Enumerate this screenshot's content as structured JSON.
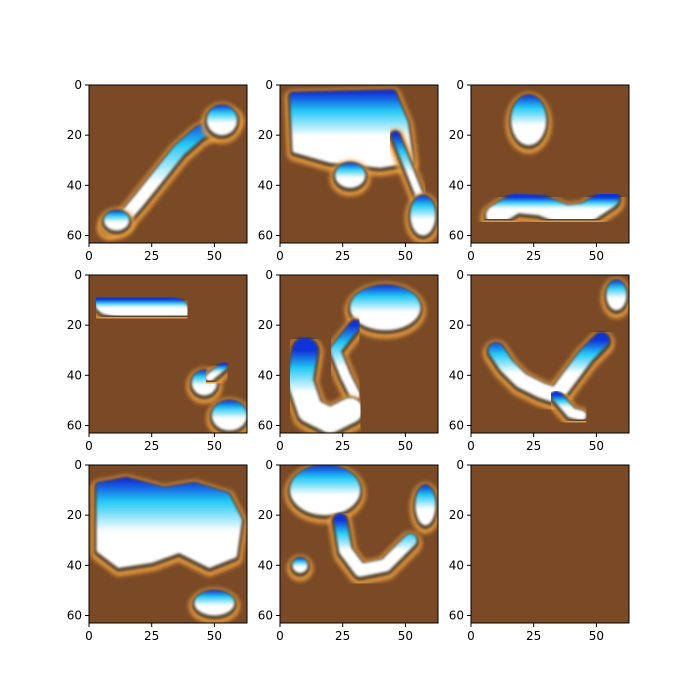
{
  "figure": {
    "background": "#ffffff",
    "panel_background": "#7a4a26",
    "palette": {
      "brown": "#7a4a26",
      "highlight_white": "#ffffff",
      "cyan": "#22c8f4",
      "blue": "#1030d8",
      "orange_rim": "#f0a040",
      "dark_rim": "#2a2a2a"
    }
  },
  "chart_data": [
    {
      "type": "image",
      "panel": "row1-col1",
      "xlim": [
        0,
        63
      ],
      "ylim": [
        63,
        0
      ],
      "xticks": [
        0,
        25,
        50
      ],
      "yticks": [
        0,
        20,
        40,
        60
      ],
      "blobs": [
        {
          "kind": "stroke",
          "points": [
            [
              8,
              56
            ],
            [
              14,
              53
            ],
            [
              20,
              46
            ],
            [
              28,
              36
            ],
            [
              36,
              26
            ],
            [
              44,
              19
            ],
            [
              52,
              15
            ],
            [
              57,
              13
            ]
          ],
          "thickness": 5
        },
        {
          "kind": "ellipse",
          "cx": 53,
          "cy": 14,
          "rx": 6,
          "ry": 6
        },
        {
          "kind": "ellipse",
          "cx": 11,
          "cy": 54,
          "rx": 5,
          "ry": 4
        }
      ]
    },
    {
      "type": "image",
      "panel": "row1-col2",
      "xlim": [
        0,
        63
      ],
      "ylim": [
        63,
        0
      ],
      "xticks": [
        0,
        25,
        50
      ],
      "yticks": [
        0,
        20,
        40,
        60
      ],
      "blobs": [
        {
          "kind": "polygon",
          "points": [
            [
              5,
              4
            ],
            [
              45,
              3
            ],
            [
              50,
              15
            ],
            [
              52,
              30
            ],
            [
              40,
              32
            ],
            [
              20,
              30
            ],
            [
              6,
              26
            ]
          ]
        },
        {
          "kind": "ellipse",
          "cx": 28,
          "cy": 36,
          "rx": 6,
          "ry": 5
        },
        {
          "kind": "stroke",
          "points": [
            [
              46,
              20
            ],
            [
              52,
              35
            ],
            [
              56,
              45
            ]
          ],
          "thickness": 3
        },
        {
          "kind": "ellipse",
          "cx": 57,
          "cy": 52,
          "rx": 5,
          "ry": 8
        }
      ]
    },
    {
      "type": "image",
      "panel": "row1-col3",
      "xlim": [
        0,
        63
      ],
      "ylim": [
        63,
        0
      ],
      "xticks": [
        0,
        25,
        50
      ],
      "yticks": [
        0,
        20,
        40,
        60
      ],
      "blobs": [
        {
          "kind": "ellipse",
          "cx": 23,
          "cy": 14,
          "rx": 7,
          "ry": 10
        },
        {
          "kind": "stroke",
          "points": [
            [
              10,
              52
            ],
            [
              18,
              47
            ],
            [
              28,
              48
            ],
            [
              38,
              52
            ],
            [
              46,
              51
            ],
            [
              55,
              45
            ]
          ],
          "thickness": 8
        }
      ]
    },
    {
      "type": "image",
      "panel": "row2-col1",
      "xlim": [
        0,
        63
      ],
      "ylim": [
        63,
        0
      ],
      "xticks": [
        0,
        25,
        50
      ],
      "yticks": [
        0,
        20,
        40,
        60
      ],
      "blobs": [
        {
          "kind": "stroke",
          "points": [
            [
              8,
              10
            ],
            [
              18,
              12
            ],
            [
              28,
              13
            ],
            [
              34,
              15
            ]
          ],
          "thickness": 12
        },
        {
          "kind": "ellipse",
          "cx": 46,
          "cy": 43,
          "rx": 5,
          "ry": 5
        },
        {
          "kind": "stroke",
          "points": [
            [
              48,
              41
            ],
            [
              54,
              36
            ]
          ],
          "thickness": 3
        },
        {
          "kind": "ellipse",
          "cx": 56,
          "cy": 56,
          "rx": 7,
          "ry": 6
        }
      ]
    },
    {
      "type": "image",
      "panel": "row2-col2",
      "xlim": [
        0,
        63
      ],
      "ylim": [
        63,
        0
      ],
      "xticks": [
        0,
        25,
        50
      ],
      "yticks": [
        0,
        20,
        40,
        60
      ],
      "blobs": [
        {
          "kind": "ellipse",
          "cx": 42,
          "cy": 13,
          "rx": 14,
          "ry": 9
        },
        {
          "kind": "stroke",
          "points": [
            [
              30,
              20
            ],
            [
              22,
              30
            ],
            [
              26,
              40
            ],
            [
              30,
              48
            ]
          ],
          "thickness": 4
        },
        {
          "kind": "stroke",
          "points": [
            [
              10,
              30
            ],
            [
              8,
              42
            ],
            [
              12,
              54
            ],
            [
              20,
              58
            ],
            [
              28,
              54
            ]
          ],
          "thickness": 10
        }
      ]
    },
    {
      "type": "image",
      "panel": "row2-col3",
      "xlim": [
        0,
        63
      ],
      "ylim": [
        63,
        0
      ],
      "xticks": [
        0,
        25,
        50
      ],
      "yticks": [
        0,
        20,
        40,
        60
      ],
      "blobs": [
        {
          "kind": "ellipse",
          "cx": 58,
          "cy": 8,
          "rx": 4,
          "ry": 6
        },
        {
          "kind": "stroke",
          "points": [
            [
              10,
              30
            ],
            [
              14,
              36
            ],
            [
              20,
              42
            ],
            [
              28,
              46
            ],
            [
              34,
              48
            ],
            [
              40,
              40
            ],
            [
              46,
              32
            ],
            [
              52,
              26
            ]
          ],
          "thickness": 6
        },
        {
          "kind": "stroke",
          "points": [
            [
              34,
              48
            ],
            [
              40,
              55
            ],
            [
              44,
              56
            ]
          ],
          "thickness": 4
        }
      ]
    },
    {
      "type": "image",
      "panel": "row3-col1",
      "xlim": [
        0,
        63
      ],
      "ylim": [
        63,
        0
      ],
      "xticks": [
        0,
        25,
        50
      ],
      "yticks": [
        0,
        20,
        40,
        60
      ],
      "blobs": [
        {
          "kind": "polygon",
          "points": [
            [
              4,
              8
            ],
            [
              15,
              6
            ],
            [
              30,
              10
            ],
            [
              42,
              8
            ],
            [
              55,
              12
            ],
            [
              60,
              22
            ],
            [
              58,
              36
            ],
            [
              48,
              40
            ],
            [
              36,
              34
            ],
            [
              25,
              38
            ],
            [
              12,
              40
            ],
            [
              4,
              34
            ]
          ]
        },
        {
          "kind": "ellipse",
          "cx": 50,
          "cy": 55,
          "rx": 8,
          "ry": 5
        }
      ]
    },
    {
      "type": "image",
      "panel": "row3-col2",
      "xlim": [
        0,
        63
      ],
      "ylim": [
        63,
        0
      ],
      "xticks": [
        0,
        25,
        50
      ],
      "yticks": [
        0,
        20,
        40,
        60
      ],
      "blobs": [
        {
          "kind": "ellipse",
          "cx": 18,
          "cy": 10,
          "rx": 14,
          "ry": 10
        },
        {
          "kind": "stroke",
          "points": [
            [
              24,
              22
            ],
            [
              26,
              34
            ],
            [
              32,
              42
            ],
            [
              42,
              40
            ],
            [
              52,
              30
            ]
          ],
          "thickness": 5
        },
        {
          "kind": "ellipse",
          "cx": 58,
          "cy": 16,
          "rx": 4,
          "ry": 8
        },
        {
          "kind": "ellipse",
          "cx": 8,
          "cy": 40,
          "rx": 3,
          "ry": 3
        }
      ]
    },
    {
      "type": "image",
      "panel": "row3-col3",
      "xlim": [
        0,
        63
      ],
      "ylim": [
        63,
        0
      ],
      "xticks": [
        0,
        25,
        50
      ],
      "yticks": [
        0,
        20,
        40,
        60
      ],
      "blobs": []
    }
  ]
}
